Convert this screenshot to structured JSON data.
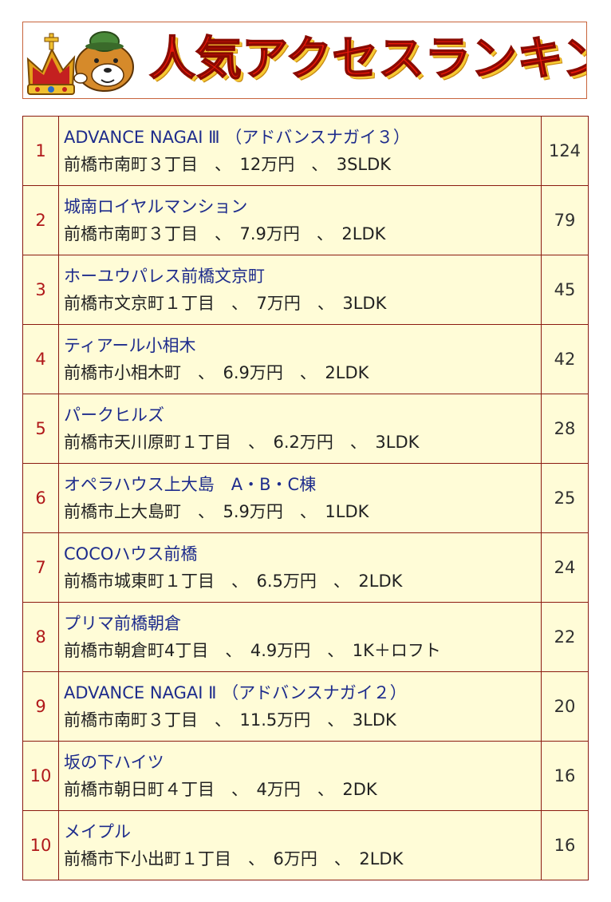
{
  "banner": {
    "title": "人気アクセスランキング"
  },
  "rankings": [
    {
      "rank": "1",
      "name": "ADVANCE NAGAI Ⅲ （アドバンスナガイ３）",
      "detail": "前橋市南町３丁目　、　12万円　、　3SLDK",
      "count": "124"
    },
    {
      "rank": "2",
      "name": "城南ロイヤルマンション",
      "detail": "前橋市南町３丁目　、　7.9万円　、　2LDK",
      "count": "79"
    },
    {
      "rank": "3",
      "name": "ホーユウパレス前橋文京町",
      "detail": "前橋市文京町１丁目　、　7万円　、　3LDK",
      "count": "45"
    },
    {
      "rank": "4",
      "name": "ティアール小相木",
      "detail": "前橋市小相木町　、　6.9万円　、　2LDK",
      "count": "42"
    },
    {
      "rank": "5",
      "name": "パークヒルズ",
      "detail": "前橋市天川原町１丁目　、　6.2万円　、　3LDK",
      "count": "28"
    },
    {
      "rank": "6",
      "name": "オペラハウス上大島　A・B・C棟",
      "detail": "前橋市上大島町　、　5.9万円　、　1LDK",
      "count": "25"
    },
    {
      "rank": "7",
      "name": "COCOハウス前橋",
      "detail": "前橋市城東町１丁目　、　6.5万円　、　2LDK",
      "count": "24"
    },
    {
      "rank": "8",
      "name": "プリマ前橋朝倉",
      "detail": "前橋市朝倉町4丁目　、　4.9万円　、　1K＋ロフト",
      "count": "22"
    },
    {
      "rank": "9",
      "name": "ADVANCE NAGAI Ⅱ （アドバンスナガイ２）",
      "detail": "前橋市南町３丁目　、　11.5万円　、　3LDK",
      "count": "20"
    },
    {
      "rank": "10",
      "name": "坂の下ハイツ",
      "detail": "前橋市朝日町４丁目　、　4万円　、　2DK",
      "count": "16"
    },
    {
      "rank": "10",
      "name": "メイプル",
      "detail": "前橋市下小出町１丁目　、　6万円　、　2LDK",
      "count": "16"
    }
  ],
  "colors": {
    "title_red": "#e8180a",
    "row_background": "#fffcd7",
    "border": "#8b1a10",
    "link_blue": "#1e2c8c",
    "rank_red": "#b0181a"
  }
}
